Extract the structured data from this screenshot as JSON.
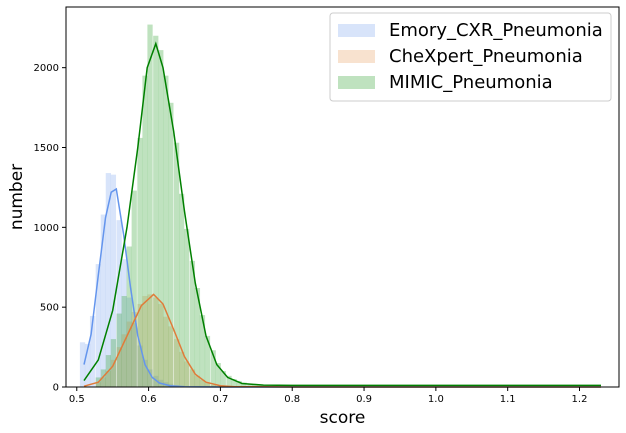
{
  "chart_data": {
    "type": "histogram",
    "title": "",
    "xlabel": "score",
    "ylabel": "number",
    "xlim": [
      0.485,
      1.255
    ],
    "ylim": [
      0,
      2380
    ],
    "xticks": [
      "0.5",
      "0.6",
      "0.7",
      "0.8",
      "0.9",
      "1.0",
      "1.1",
      "1.2"
    ],
    "yticks": [
      "0",
      "500",
      "1000",
      "1500",
      "2000"
    ],
    "grid": false,
    "legend_position": "upper-right",
    "bin_width": 0.0073,
    "series": [
      {
        "name": "Emory_CXR_Pneumonia",
        "fill_color": "#6495ed",
        "fill_opacity": 0.25,
        "line_color": "#6495ed",
        "bins": [
          {
            "x": 0.508,
            "count": 280
          },
          {
            "x": 0.515,
            "count": 270
          },
          {
            "x": 0.522,
            "count": 445
          },
          {
            "x": 0.53,
            "count": 770
          },
          {
            "x": 0.537,
            "count": 1080
          },
          {
            "x": 0.544,
            "count": 1340
          },
          {
            "x": 0.551,
            "count": 1330
          },
          {
            "x": 0.559,
            "count": 1045
          },
          {
            "x": 0.566,
            "count": 800
          },
          {
            "x": 0.573,
            "count": 560
          },
          {
            "x": 0.58,
            "count": 400
          },
          {
            "x": 0.588,
            "count": 260
          },
          {
            "x": 0.595,
            "count": 170
          },
          {
            "x": 0.602,
            "count": 110
          },
          {
            "x": 0.61,
            "count": 70
          },
          {
            "x": 0.617,
            "count": 45
          },
          {
            "x": 0.624,
            "count": 30
          },
          {
            "x": 0.631,
            "count": 20
          },
          {
            "x": 0.639,
            "count": 12
          },
          {
            "x": 0.646,
            "count": 8
          }
        ],
        "kde": [
          [
            0.51,
            140
          ],
          [
            0.52,
            330
          ],
          [
            0.53,
            700
          ],
          [
            0.54,
            1060
          ],
          [
            0.548,
            1220
          ],
          [
            0.555,
            1240
          ],
          [
            0.565,
            960
          ],
          [
            0.575,
            620
          ],
          [
            0.585,
            320
          ],
          [
            0.595,
            140
          ],
          [
            0.605,
            60
          ],
          [
            0.615,
            25
          ],
          [
            0.63,
            8
          ],
          [
            0.65,
            2
          ],
          [
            0.7,
            0
          ],
          [
            1.23,
            0
          ]
        ]
      },
      {
        "name": "CheXpert_Pneumonia",
        "fill_color": "#e8a060",
        "fill_opacity": 0.3,
        "line_color": "#e07b39",
        "bins": [
          {
            "x": 0.53,
            "count": 30
          },
          {
            "x": 0.537,
            "count": 60
          },
          {
            "x": 0.544,
            "count": 100
          },
          {
            "x": 0.551,
            "count": 170
          },
          {
            "x": 0.559,
            "count": 250
          },
          {
            "x": 0.566,
            "count": 330
          },
          {
            "x": 0.573,
            "count": 410
          },
          {
            "x": 0.58,
            "count": 470
          },
          {
            "x": 0.588,
            "count": 520
          },
          {
            "x": 0.595,
            "count": 570
          },
          {
            "x": 0.602,
            "count": 580
          },
          {
            "x": 0.61,
            "count": 560
          },
          {
            "x": 0.617,
            "count": 520
          },
          {
            "x": 0.624,
            "count": 440
          },
          {
            "x": 0.631,
            "count": 380
          },
          {
            "x": 0.639,
            "count": 300
          },
          {
            "x": 0.646,
            "count": 220
          },
          {
            "x": 0.653,
            "count": 160
          },
          {
            "x": 0.661,
            "count": 110
          },
          {
            "x": 0.668,
            "count": 70
          },
          {
            "x": 0.675,
            "count": 45
          },
          {
            "x": 0.682,
            "count": 25
          },
          {
            "x": 0.69,
            "count": 12
          }
        ],
        "kde": [
          [
            0.51,
            5
          ],
          [
            0.53,
            30
          ],
          [
            0.55,
            130
          ],
          [
            0.57,
            320
          ],
          [
            0.59,
            510
          ],
          [
            0.607,
            580
          ],
          [
            0.62,
            520
          ],
          [
            0.635,
            360
          ],
          [
            0.65,
            190
          ],
          [
            0.665,
            80
          ],
          [
            0.68,
            30
          ],
          [
            0.7,
            8
          ],
          [
            0.72,
            2
          ],
          [
            0.8,
            0
          ],
          [
            1.23,
            0
          ]
        ]
      },
      {
        "name": "MIMIC_Pneumonia",
        "fill_color": "#2ca02c",
        "fill_opacity": 0.3,
        "line_color": "#008000",
        "bins": [
          {
            "x": 0.53,
            "count": 60
          },
          {
            "x": 0.537,
            "count": 110
          },
          {
            "x": 0.544,
            "count": 200
          },
          {
            "x": 0.551,
            "count": 300
          },
          {
            "x": 0.559,
            "count": 460
          },
          {
            "x": 0.566,
            "count": 570
          },
          {
            "x": 0.573,
            "count": 880
          },
          {
            "x": 0.58,
            "count": 1230
          },
          {
            "x": 0.588,
            "count": 1560
          },
          {
            "x": 0.595,
            "count": 1950
          },
          {
            "x": 0.602,
            "count": 2270
          },
          {
            "x": 0.61,
            "count": 2200
          },
          {
            "x": 0.617,
            "count": 2110
          },
          {
            "x": 0.624,
            "count": 1950
          },
          {
            "x": 0.631,
            "count": 1780
          },
          {
            "x": 0.639,
            "count": 1530
          },
          {
            "x": 0.646,
            "count": 1210
          },
          {
            "x": 0.653,
            "count": 990
          },
          {
            "x": 0.661,
            "count": 790
          },
          {
            "x": 0.668,
            "count": 620
          },
          {
            "x": 0.675,
            "count": 450
          },
          {
            "x": 0.682,
            "count": 320
          },
          {
            "x": 0.69,
            "count": 230
          },
          {
            "x": 0.697,
            "count": 150
          },
          {
            "x": 0.704,
            "count": 100
          },
          {
            "x": 0.712,
            "count": 70
          },
          {
            "x": 0.719,
            "count": 50
          },
          {
            "x": 0.726,
            "count": 38
          },
          {
            "x": 0.733,
            "count": 28
          },
          {
            "x": 0.741,
            "count": 20
          },
          {
            "x": 0.748,
            "count": 14
          },
          {
            "x": 0.755,
            "count": 10
          },
          {
            "x": 0.763,
            "count": 7
          },
          {
            "x": 0.77,
            "count": 5
          },
          {
            "x": 0.777,
            "count": 4
          },
          {
            "x": 0.785,
            "count": 3
          }
        ],
        "kde": [
          [
            0.51,
            40
          ],
          [
            0.53,
            170
          ],
          [
            0.55,
            480
          ],
          [
            0.57,
            1000
          ],
          [
            0.585,
            1500
          ],
          [
            0.598,
            2000
          ],
          [
            0.61,
            2150
          ],
          [
            0.62,
            2000
          ],
          [
            0.635,
            1600
          ],
          [
            0.65,
            1100
          ],
          [
            0.665,
            650
          ],
          [
            0.68,
            320
          ],
          [
            0.695,
            140
          ],
          [
            0.71,
            60
          ],
          [
            0.73,
            22
          ],
          [
            0.76,
            12
          ],
          [
            0.8,
            10
          ],
          [
            0.9,
            10
          ],
          [
            1.0,
            10
          ],
          [
            1.1,
            10
          ],
          [
            1.23,
            10
          ]
        ]
      }
    ]
  }
}
